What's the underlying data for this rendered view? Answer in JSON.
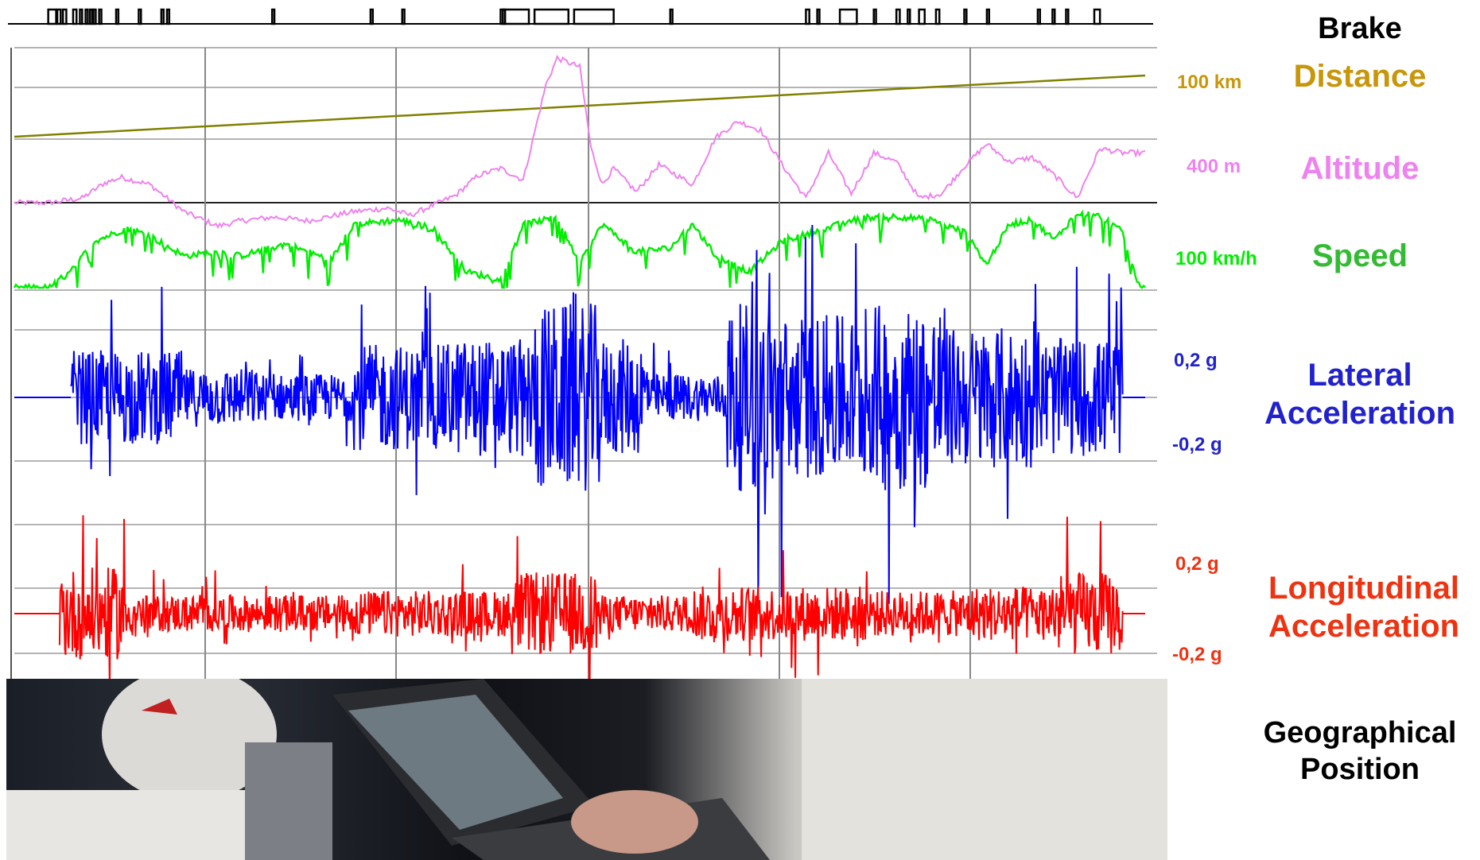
{
  "colors": {
    "brake": "#000000",
    "distance": "#808000",
    "distance_label": "#c8960a",
    "altitude": "#ee82ee",
    "speed": "#00ee00",
    "speed_label": "#33bb33",
    "lateral": "#0000ff",
    "lateral_label": "#2222cc",
    "longitudinal": "#ff0000",
    "longitudinal_label": "#ee3311",
    "grid": "#888888"
  },
  "labels": {
    "brake": "Brake",
    "distance": "Distance",
    "altitude": "Altitude",
    "speed": "Speed",
    "lateral_line1": "Lateral",
    "lateral_line2": "Acceleration",
    "longitudinal_line1": "Longitudinal",
    "longitudinal_line2": "Acceleration",
    "geo_line1": "Geographical",
    "geo_line2": "Position"
  },
  "units": {
    "distance": "100 km",
    "altitude": "400 m",
    "speed": "100 km/h",
    "lateral_pos": "0,2 g",
    "lateral_neg": "-0,2 g",
    "longitudinal_pos": "0,2 g",
    "longitudinal_neg": "-0,2 g"
  },
  "chart_data": {
    "type": "line",
    "x_range": [
      0,
      1
    ],
    "grid": true,
    "series": [
      {
        "name": "Brake",
        "type": "step",
        "on_intervals": [
          [
            0.03,
            0.037
          ],
          [
            0.038,
            0.041
          ],
          [
            0.043,
            0.046
          ],
          [
            0.052,
            0.055
          ],
          [
            0.058,
            0.06
          ],
          [
            0.063,
            0.065
          ],
          [
            0.067,
            0.069
          ],
          [
            0.07,
            0.072
          ],
          [
            0.075,
            0.077
          ],
          [
            0.09,
            0.092
          ],
          [
            0.11,
            0.112
          ],
          [
            0.13,
            0.132
          ],
          [
            0.135,
            0.137
          ],
          [
            0.228,
            0.23
          ],
          [
            0.315,
            0.317
          ],
          [
            0.343,
            0.345
          ],
          [
            0.432,
            0.434
          ],
          [
            0.43,
            0.455
          ],
          [
            0.46,
            0.49
          ],
          [
            0.495,
            0.53
          ],
          [
            0.58,
            0.582
          ],
          [
            0.7,
            0.703
          ],
          [
            0.71,
            0.712
          ],
          [
            0.73,
            0.745
          ],
          [
            0.76,
            0.762
          ],
          [
            0.78,
            0.783
          ],
          [
            0.79,
            0.792
          ],
          [
            0.8,
            0.805
          ],
          [
            0.815,
            0.818
          ],
          [
            0.84,
            0.842
          ],
          [
            0.86,
            0.862
          ],
          [
            0.905,
            0.907
          ],
          [
            0.918,
            0.92
          ],
          [
            0.93,
            0.932
          ],
          [
            0.955,
            0.96
          ]
        ]
      },
      {
        "name": "Distance",
        "x": [
          0,
          1
        ],
        "y": [
          0,
          100
        ]
      },
      {
        "name": "Altitude",
        "x": [
          0,
          0.03,
          0.06,
          0.08,
          0.095,
          0.12,
          0.15,
          0.18,
          0.2,
          0.23,
          0.26,
          0.3,
          0.33,
          0.35,
          0.37,
          0.39,
          0.41,
          0.43,
          0.45,
          0.47,
          0.48,
          0.5,
          0.51,
          0.52,
          0.53,
          0.55,
          0.57,
          0.6,
          0.62,
          0.64,
          0.66,
          0.68,
          0.7,
          0.72,
          0.74,
          0.76,
          0.78,
          0.8,
          0.82,
          0.84,
          0.86,
          0.88,
          0.9,
          0.92,
          0.94,
          0.96,
          0.98,
          1.0
        ],
        "y": [
          0,
          0,
          5,
          22,
          28,
          20,
          -10,
          -26,
          -20,
          -16,
          -20,
          -10,
          -6,
          -14,
          -3,
          8,
          30,
          38,
          25,
          130,
          160,
          150,
          60,
          20,
          38,
          12,
          42,
          20,
          72,
          90,
          80,
          40,
          5,
          55,
          10,
          55,
          45,
          5,
          10,
          40,
          65,
          45,
          50,
          30,
          5,
          60,
          55,
          55
        ]
      },
      {
        "name": "Speed",
        "x": [
          0,
          0.03,
          0.05,
          0.07,
          0.1,
          0.12,
          0.15,
          0.18,
          0.2,
          0.24,
          0.28,
          0.3,
          0.34,
          0.37,
          0.4,
          0.43,
          0.45,
          0.48,
          0.5,
          0.52,
          0.55,
          0.58,
          0.6,
          0.62,
          0.65,
          0.68,
          0.71,
          0.73,
          0.75,
          0.78,
          0.81,
          0.84,
          0.86,
          0.88,
          0.9,
          0.92,
          0.94,
          0.96,
          0.98,
          0.995
        ],
        "y": [
          0,
          0,
          20,
          58,
          75,
          65,
          40,
          45,
          40,
          55,
          35,
          80,
          85,
          75,
          20,
          10,
          80,
          88,
          30,
          80,
          45,
          50,
          80,
          40,
          20,
          60,
          70,
          80,
          88,
          90,
          85,
          70,
          30,
          80,
          85,
          60,
          95,
          90,
          70,
          0
        ]
      },
      {
        "name": "Lateral Acceleration",
        "burst_regions": [
          [
            0.05,
            0.15,
            0.08
          ],
          [
            0.15,
            0.22,
            0.05
          ],
          [
            0.22,
            0.3,
            0.04
          ],
          [
            0.3,
            0.38,
            0.09
          ],
          [
            0.38,
            0.46,
            0.1
          ],
          [
            0.46,
            0.52,
            0.16
          ],
          [
            0.52,
            0.56,
            0.1
          ],
          [
            0.56,
            0.63,
            0.04
          ],
          [
            0.63,
            0.68,
            0.16
          ],
          [
            0.68,
            0.76,
            0.14
          ],
          [
            0.76,
            0.82,
            0.16
          ],
          [
            0.82,
            0.9,
            0.12
          ],
          [
            0.9,
            0.98,
            0.1
          ]
        ]
      },
      {
        "name": "Longitudinal Acceleration",
        "burst_regions": [
          [
            0.04,
            0.1,
            0.1
          ],
          [
            0.1,
            0.3,
            0.04
          ],
          [
            0.3,
            0.38,
            0.05
          ],
          [
            0.38,
            0.44,
            0.05
          ],
          [
            0.44,
            0.52,
            0.09
          ],
          [
            0.52,
            0.6,
            0.04
          ],
          [
            0.6,
            0.68,
            0.06
          ],
          [
            0.68,
            0.76,
            0.06
          ],
          [
            0.76,
            0.84,
            0.05
          ],
          [
            0.84,
            0.92,
            0.06
          ],
          [
            0.92,
            0.98,
            0.09
          ]
        ]
      }
    ]
  }
}
